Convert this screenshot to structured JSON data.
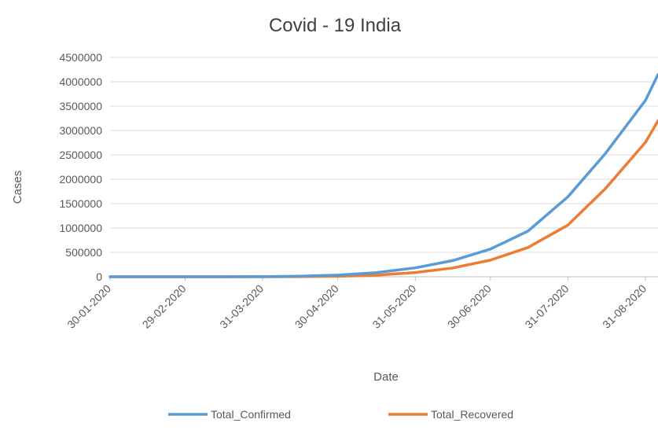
{
  "chart_data": {
    "type": "line",
    "title": "Covid - 19 India",
    "xlabel": "Date",
    "ylabel": "Cases",
    "x_tick_labels": [
      "30-01-2020",
      "29-02-2020",
      "31-03-2020",
      "30-04-2020",
      "31-05-2020",
      "30-06-2020",
      "31-07-2020",
      "31-08-2020"
    ],
    "y_tick_labels": [
      "0",
      "500000",
      "1000000",
      "1500000",
      "2000000",
      "2500000",
      "3000000",
      "3500000",
      "4000000",
      "4500000"
    ],
    "ylim": [
      0,
      4500000
    ],
    "xlim": [
      "2020-01-30",
      "2020-09-05"
    ],
    "grid": true,
    "legend_position": "bottom",
    "series": [
      {
        "name": "Total_Confirmed",
        "color": "#5B9BD5",
        "points": [
          [
            "2020-01-30",
            1
          ],
          [
            "2020-02-29",
            3
          ],
          [
            "2020-03-15",
            110
          ],
          [
            "2020-03-31",
            1400
          ],
          [
            "2020-04-15",
            12000
          ],
          [
            "2020-04-30",
            34000
          ],
          [
            "2020-05-15",
            82000
          ],
          [
            "2020-05-31",
            182000
          ],
          [
            "2020-06-15",
            333000
          ],
          [
            "2020-06-30",
            567000
          ],
          [
            "2020-07-15",
            936000
          ],
          [
            "2020-07-31",
            1640000
          ],
          [
            "2020-08-15",
            2530000
          ],
          [
            "2020-08-31",
            3620000
          ],
          [
            "2020-09-05",
            4150000
          ]
        ]
      },
      {
        "name": "Total_Recovered",
        "color": "#ED7D31",
        "points": [
          [
            "2020-01-30",
            0
          ],
          [
            "2020-02-29",
            3
          ],
          [
            "2020-03-31",
            130
          ],
          [
            "2020-04-15",
            1400
          ],
          [
            "2020-04-30",
            9000
          ],
          [
            "2020-05-15",
            30000
          ],
          [
            "2020-05-31",
            87000
          ],
          [
            "2020-06-15",
            180000
          ],
          [
            "2020-06-30",
            340000
          ],
          [
            "2020-07-15",
            600000
          ],
          [
            "2020-07-31",
            1060000
          ],
          [
            "2020-08-15",
            1810000
          ],
          [
            "2020-08-31",
            2760000
          ],
          [
            "2020-09-05",
            3200000
          ]
        ]
      }
    ]
  }
}
